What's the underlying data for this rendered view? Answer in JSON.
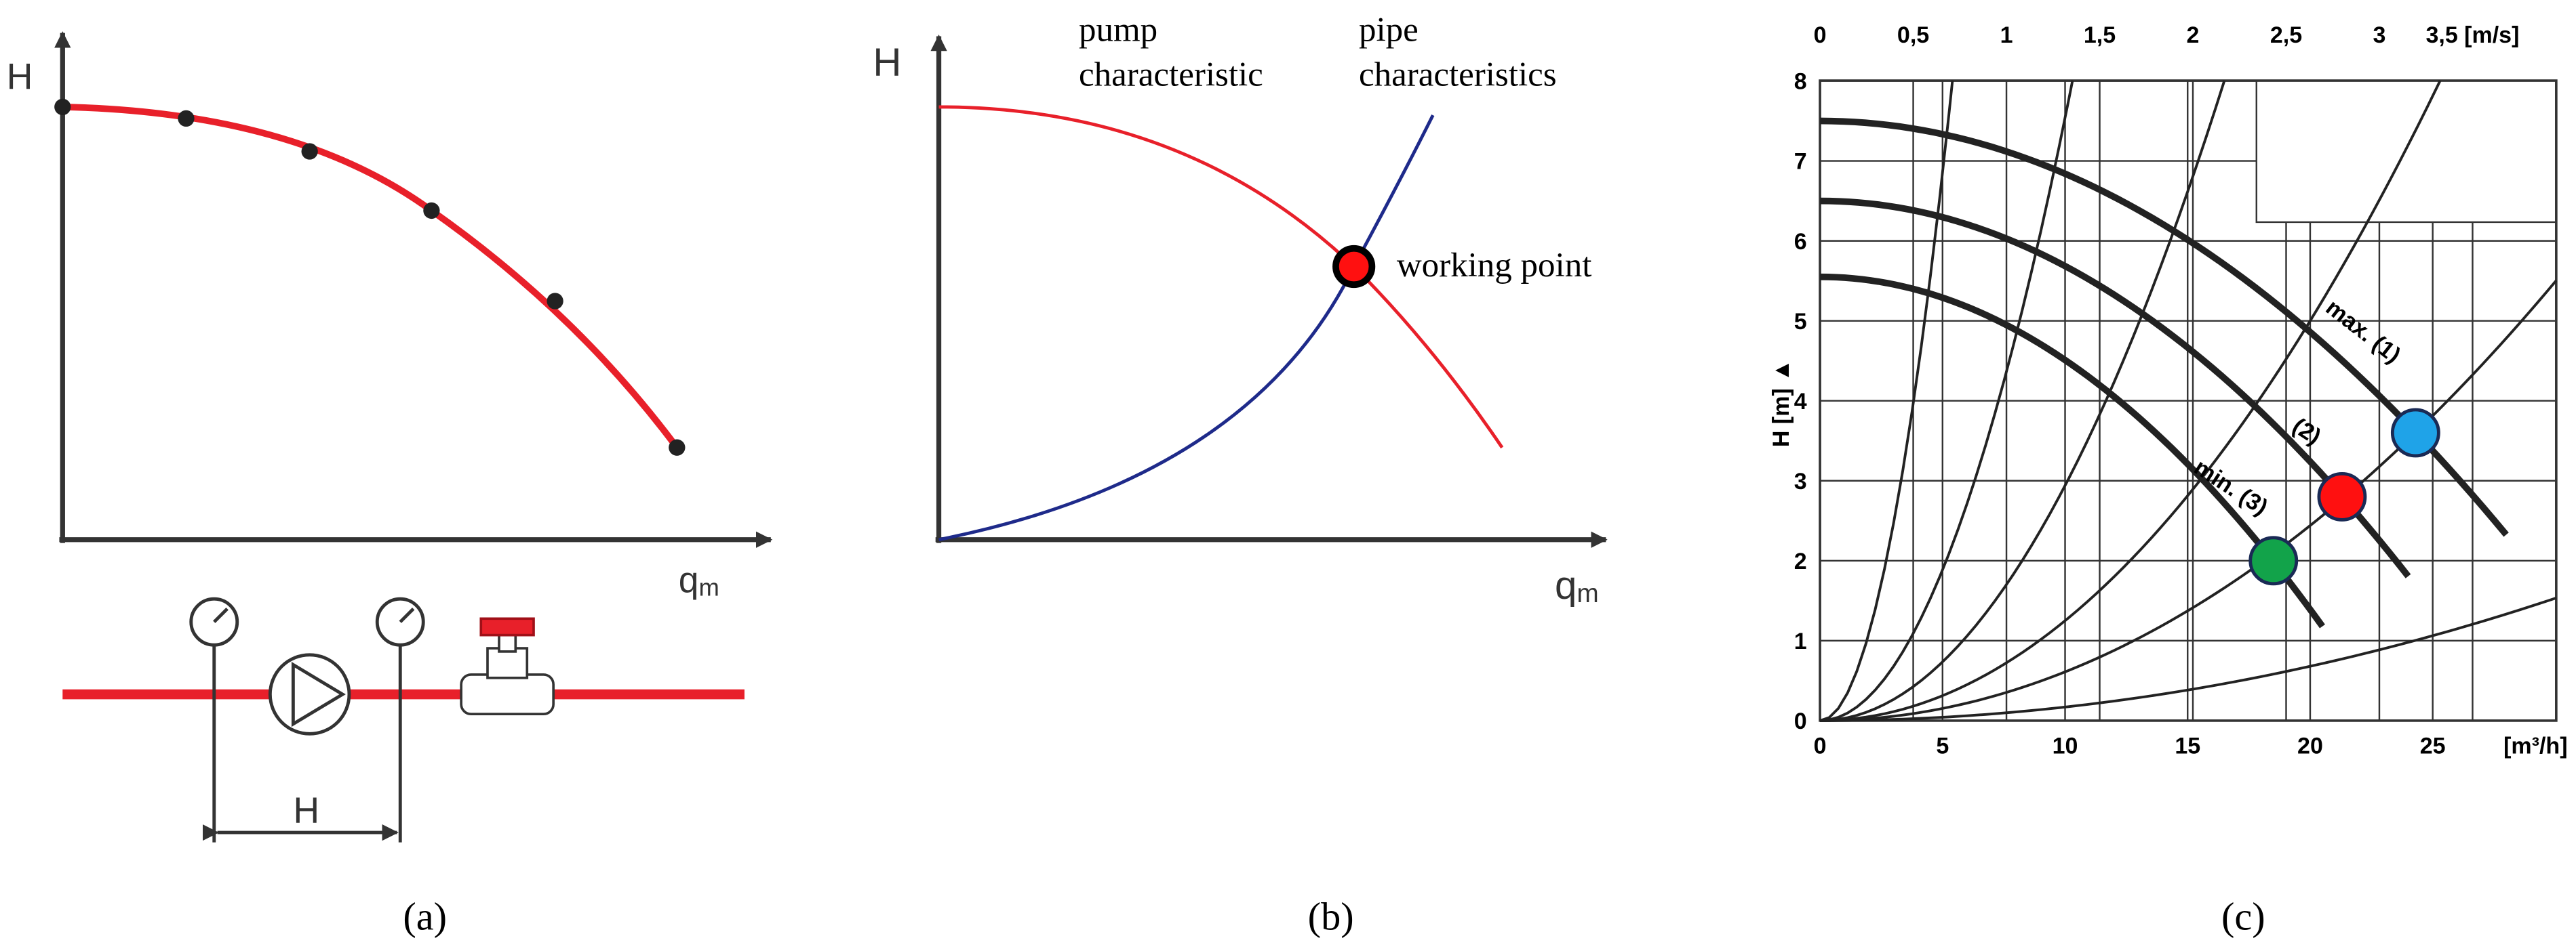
{
  "panels": {
    "a": {
      "y_label": "H",
      "x_label": {
        "text": "q",
        "sub": "m"
      },
      "dimension_label": "H",
      "caption": "(a)"
    },
    "b": {
      "y_label": "H",
      "x_label": {
        "text": "q",
        "sub": "m"
      },
      "pump_label": [
        "pump",
        "characteristic"
      ],
      "pipe_label": [
        "pipe",
        "characteristics"
      ],
      "point_label": "working point",
      "caption": "(b)"
    },
    "c": {
      "top_ticks": [
        "0",
        "0,5",
        "1",
        "1,5",
        "2",
        "2,5",
        "3",
        "3,5 [m/s]"
      ],
      "bottom_ticks": [
        0,
        5,
        10,
        15,
        20,
        25
      ],
      "bottom_unit": "[m³/h]",
      "y_ticks": [
        0,
        1,
        2,
        3,
        4,
        5,
        6,
        7,
        8
      ],
      "y_label": "H [m] ▲",
      "curve_labels": [
        "max. (1)",
        "(2)",
        "min. (3)"
      ],
      "caption": "(c)"
    }
  }
}
